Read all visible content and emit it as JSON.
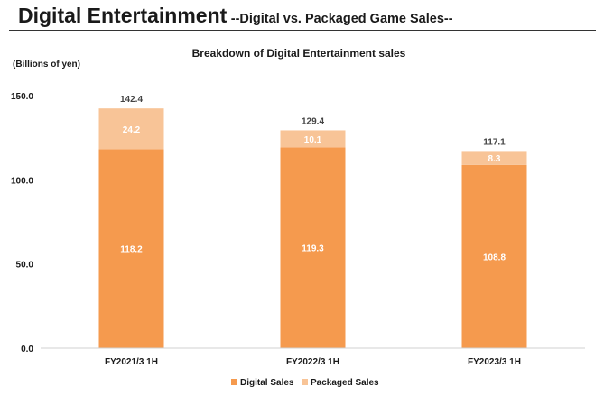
{
  "header": {
    "title": "Digital Entertainment",
    "subtitle": "--Digital vs. Packaged Game Sales--"
  },
  "chart_data": {
    "type": "bar",
    "stacked": true,
    "title": "Breakdown of Digital Entertainment sales",
    "ylabel": "(Billions of yen)",
    "xlabel": "",
    "ylim": [
      0,
      150
    ],
    "yticks": [
      "0.0",
      "50.0",
      "100.0",
      "150.0"
    ],
    "grid": false,
    "legend_position": "bottom",
    "categories": [
      "FY2021/3 1H",
      "FY2022/3 1H",
      "FY2023/3 1H"
    ],
    "series": [
      {
        "name": "Digital Sales",
        "values": [
          118.2,
          119.3,
          108.8
        ],
        "color": "#f59a4e",
        "labels": [
          "118.2",
          "119.3",
          "108.8"
        ]
      },
      {
        "name": "Packaged Sales",
        "values": [
          24.2,
          10.1,
          8.3
        ],
        "color": "#f8c497",
        "labels": [
          "24.2",
          "10.1",
          "8.3"
        ]
      }
    ],
    "totals": [
      "142.4",
      "129.4",
      "117.1"
    ]
  }
}
